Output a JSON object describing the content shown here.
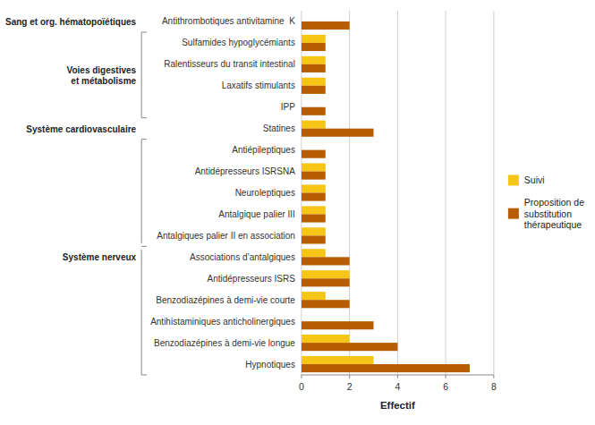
{
  "chart_data": {
    "type": "bar",
    "orientation": "horizontal",
    "categories": [
      "Antithrombotiques antivitamine  K",
      "Sulfamides hypoglycémiants",
      "Ralentisseurs du transit intestinal",
      "Laxatifs stimulants",
      "IPP",
      "Statines",
      "Antiépileptiques",
      "Antidépresseurs ISRSNA",
      "Neuroleptiques",
      "Antalgique palier III",
      "Antalgiques palier II en association",
      "Associations d’antalgiques",
      "Antidépresseurs ISRS",
      "Benzodiazépines à demi-vie courte",
      "Antihistaminiques anticholinergiques",
      "Benzodiazépines à demi-vie longue",
      "Hypnotiques"
    ],
    "series": [
      {
        "name": "Suivi",
        "color": "#F5C518",
        "values": [
          0,
          1,
          1,
          1,
          0,
          1,
          0,
          1,
          1,
          1,
          1,
          1,
          2,
          1,
          0,
          2,
          3
        ]
      },
      {
        "name": "Proposition de\nsubstitution\nthérapeutique",
        "color": "#B85C00",
        "values": [
          2,
          1,
          1,
          1,
          1,
          3,
          1,
          1,
          1,
          1,
          1,
          2,
          2,
          2,
          3,
          4,
          7
        ]
      }
    ],
    "xlabel": "Effectif",
    "xlim": [
      0,
      8
    ],
    "xticks": [
      0,
      2,
      4,
      6,
      8
    ],
    "grid": true,
    "legend": "right",
    "groups": [
      {
        "text": "Sang et org. hématopoïétiques",
        "categories": [
          "Antithrombotiques antivitamine  K"
        ]
      },
      {
        "text": "Voies digestives\net métabolisme",
        "categories": [
          "Sulfamides hypoglycémiants",
          "IPP"
        ]
      },
      {
        "text": "Système cardiovasculaire",
        "categories": [
          "Statines"
        ]
      },
      {
        "text": "Système nerveux",
        "categories": [
          "Antiépileptiques",
          "Hypnotiques"
        ],
        "split_after": "Antalgiques palier II en association"
      }
    ]
  }
}
